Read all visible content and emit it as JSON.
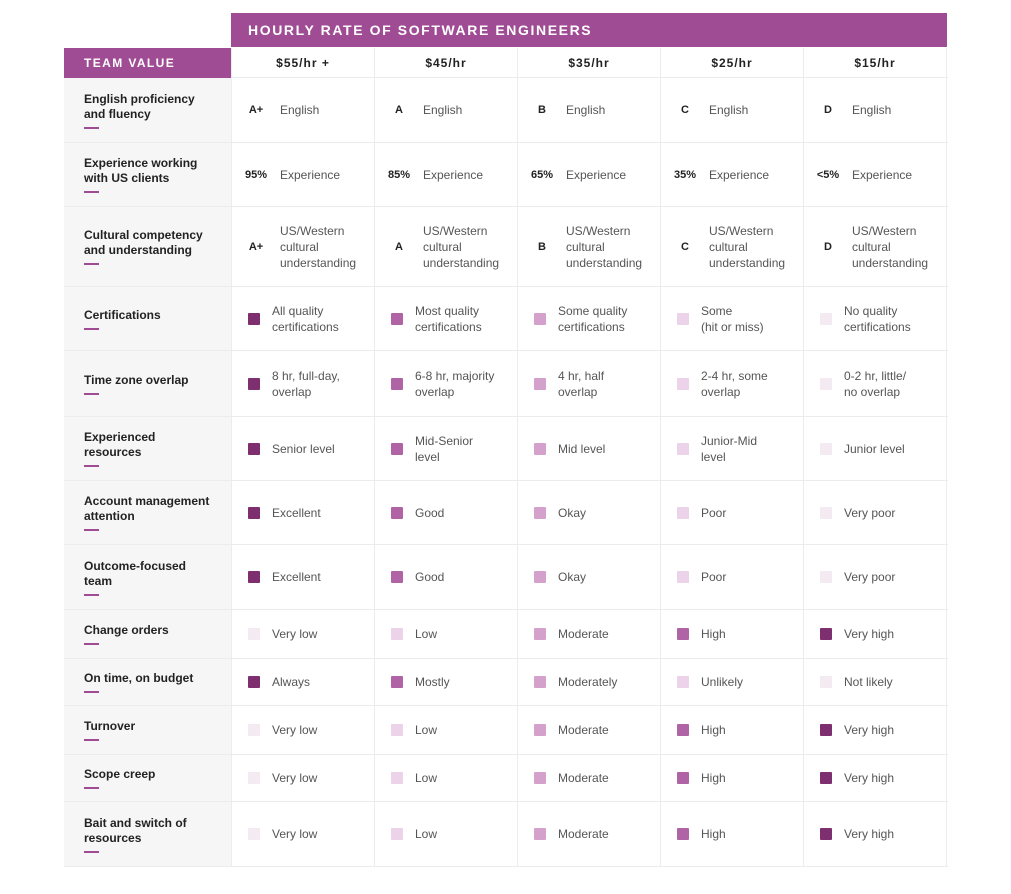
{
  "title": "HOURLY RATE OF SOFTWARE ENGINEERS",
  "team_header": "TEAM VALUE",
  "rates": [
    "$55/hr +",
    "$45/hr",
    "$35/hr",
    "$25/hr",
    "$15/hr"
  ],
  "level_colors": {
    "l1": "#7d2f6f",
    "l2": "#b064a5",
    "l3": "#d3a1cb",
    "l4": "#edd3e9",
    "l5": "#f4eaf2"
  },
  "rows": [
    {
      "label": "English proficiency\nand fluency",
      "h": 65,
      "cells": [
        {
          "mark": "A+",
          "text": "English"
        },
        {
          "mark": "A",
          "text": "English"
        },
        {
          "mark": "B",
          "text": "English"
        },
        {
          "mark": "C",
          "text": "English"
        },
        {
          "mark": "D",
          "text": "English"
        }
      ]
    },
    {
      "label": "Experience working\nwith US clients",
      "h": 64,
      "cells": [
        {
          "mark": "95%",
          "text": "Experience"
        },
        {
          "mark": "85%",
          "text": "Experience"
        },
        {
          "mark": "65%",
          "text": "Experience"
        },
        {
          "mark": "35%",
          "text": "Experience"
        },
        {
          "mark": "<5%",
          "text": "Experience"
        }
      ]
    },
    {
      "label": "Cultural competency\nand understanding",
      "h": 80,
      "cells": [
        {
          "mark": "A+",
          "text": "US/Western\ncultural\nunderstanding"
        },
        {
          "mark": "A",
          "text": "US/Western\ncultural\nunderstanding"
        },
        {
          "mark": "B",
          "text": "US/Western\ncultural\nunderstanding"
        },
        {
          "mark": "C",
          "text": "US/Western\ncultural\nunderstanding"
        },
        {
          "mark": "D",
          "text": "US/Western\ncultural\nunderstanding"
        }
      ]
    },
    {
      "label": "Certifications",
      "h": 64,
      "cells": [
        {
          "level": "l1",
          "text": "All quality\ncertifications"
        },
        {
          "level": "l2",
          "text": "Most quality\ncertifications"
        },
        {
          "level": "l3",
          "text": "Some quality\ncertifications"
        },
        {
          "level": "l4",
          "text": "Some\n(hit or miss)"
        },
        {
          "level": "l5",
          "text": "No quality\ncertifications"
        }
      ]
    },
    {
      "label": "Time zone overlap",
      "h": 66,
      "cells": [
        {
          "level": "l1",
          "text": "8 hr, full-day,\noverlap"
        },
        {
          "level": "l2",
          "text": "6-8 hr, majority\noverlap"
        },
        {
          "level": "l3",
          "text": "4 hr, half\noverlap"
        },
        {
          "level": "l4",
          "text": "2-4 hr, some\noverlap"
        },
        {
          "level": "l5",
          "text": "0-2 hr, little/\n no overlap"
        }
      ]
    },
    {
      "label": "Experienced\nresources",
      "h": 64,
      "cells": [
        {
          "level": "l1",
          "text": "Senior level"
        },
        {
          "level": "l2",
          "text": "Mid-Senior\nlevel"
        },
        {
          "level": "l3",
          "text": "Mid level"
        },
        {
          "level": "l4",
          "text": "Junior-Mid\nlevel"
        },
        {
          "level": "l5",
          "text": "Junior level"
        }
      ]
    },
    {
      "label": "Account management\nattention",
      "h": 64,
      "cells": [
        {
          "level": "l1",
          "text": "Excellent"
        },
        {
          "level": "l2",
          "text": "Good"
        },
        {
          "level": "l3",
          "text": "Okay"
        },
        {
          "level": "l4",
          "text": "Poor"
        },
        {
          "level": "l5",
          "text": "Very poor"
        }
      ]
    },
    {
      "label": "Outcome-focused\nteam",
      "h": 65,
      "cells": [
        {
          "level": "l1",
          "text": "Excellent"
        },
        {
          "level": "l2",
          "text": "Good"
        },
        {
          "level": "l3",
          "text": "Okay"
        },
        {
          "level": "l4",
          "text": "Poor"
        },
        {
          "level": "l5",
          "text": "Very poor"
        }
      ]
    },
    {
      "label": "Change orders",
      "h": 49,
      "cells": [
        {
          "level": "l5",
          "text": "Very low"
        },
        {
          "level": "l4",
          "text": "Low"
        },
        {
          "level": "l3",
          "text": "Moderate"
        },
        {
          "level": "l2",
          "text": "High"
        },
        {
          "level": "l1",
          "text": "Very high"
        }
      ]
    },
    {
      "label": "On time, on budget",
      "h": 47,
      "cells": [
        {
          "level": "l1",
          "text": "Always"
        },
        {
          "level": "l2",
          "text": "Mostly"
        },
        {
          "level": "l3",
          "text": "Moderately"
        },
        {
          "level": "l4",
          "text": "Unlikely"
        },
        {
          "level": "l5",
          "text": "Not likely"
        }
      ]
    },
    {
      "label": "Turnover",
      "h": 49,
      "cells": [
        {
          "level": "l5",
          "text": "Very low"
        },
        {
          "level": "l4",
          "text": "Low"
        },
        {
          "level": "l3",
          "text": "Moderate"
        },
        {
          "level": "l2",
          "text": "High"
        },
        {
          "level": "l1",
          "text": "Very high"
        }
      ]
    },
    {
      "label": "Scope creep",
      "h": 47,
      "cells": [
        {
          "level": "l5",
          "text": "Very low"
        },
        {
          "level": "l4",
          "text": "Low"
        },
        {
          "level": "l3",
          "text": "Moderate"
        },
        {
          "level": "l2",
          "text": "High"
        },
        {
          "level": "l1",
          "text": "Very high"
        }
      ]
    },
    {
      "label": "Bait and switch of\nresources",
      "h": 65,
      "cells": [
        {
          "level": "l5",
          "text": "Very low"
        },
        {
          "level": "l4",
          "text": "Low"
        },
        {
          "level": "l3",
          "text": "Moderate"
        },
        {
          "level": "l2",
          "text": "High"
        },
        {
          "level": "l1",
          "text": "Very high"
        }
      ]
    }
  ]
}
